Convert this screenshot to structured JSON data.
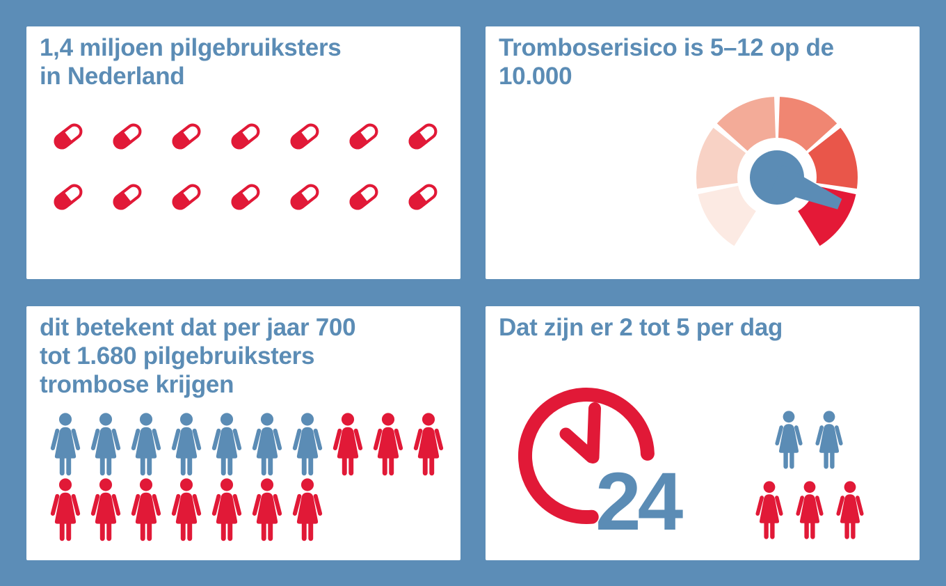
{
  "infographic": {
    "background_color": "#5c8db7",
    "card_color": "#ffffff",
    "blue": "#5b8cb5",
    "red": "#e11937"
  },
  "panel_pill_users": {
    "title": [
      "1,4 miljoen pilgebruiksters",
      "in Nederland"
    ],
    "pill_rows": [
      7,
      7
    ]
  },
  "panel_risk": {
    "title": [
      "Tromboserisico is 5–12 op de",
      "10.000"
    ],
    "gauge_segment_colors": [
      "#fceae3",
      "#f8d2c5",
      "#f3ab98",
      "#f08672",
      "#e9564a",
      "#e41937"
    ],
    "gauge_needle_color": "#5b8cb5"
  },
  "panel_per_year": {
    "title": [
      "dit betekent dat per jaar 700",
      "tot 1.680 pilgebruiksters",
      "trombose krijgen"
    ],
    "figure_rows": [
      [
        "blue",
        "blue",
        "blue",
        "blue",
        "blue",
        "blue",
        "blue",
        "red",
        "red",
        "red"
      ],
      [
        "red",
        "red",
        "red",
        "red",
        "red",
        "red",
        "red"
      ]
    ]
  },
  "panel_per_day": {
    "title": [
      "Dat zijn er 2 tot 5 per dag"
    ],
    "clock_label": "24",
    "figure_rows": [
      [
        "blue",
        "blue"
      ],
      [
        "red",
        "red",
        "red"
      ]
    ]
  },
  "chart_data": [
    {
      "type": "pictograph",
      "title": "1,4 miljoen pilgebruiksters in Nederland",
      "icon": "pill",
      "rows": [
        7,
        7
      ],
      "total_icons": 14
    },
    {
      "type": "gauge",
      "title": "Tromboserisico is 5–12 op de 10.000",
      "segments": 6,
      "segment_colors_low_to_high": [
        "#fceae3",
        "#f8d2c5",
        "#f3ab98",
        "#f08672",
        "#e9564a",
        "#e41937"
      ],
      "needle_points_to_segment": 6,
      "value_label": "5–12 op de 10.000"
    },
    {
      "type": "pictograph",
      "title": "dit betekent dat per jaar 700 tot 1.680 pilgebruiksters trombose krijgen",
      "icon": "woman",
      "rows": [
        {
          "blue": 7,
          "red": 3
        },
        {
          "blue": 0,
          "red": 7
        }
      ],
      "total_blue": 7,
      "total_red": 10
    },
    {
      "type": "pictograph",
      "title": "Dat zijn er 2 tot 5 per dag",
      "icons": [
        {
          "icon": "clock-24",
          "count": 1,
          "label": "24"
        },
        {
          "icon": "woman-blue",
          "count": 2
        },
        {
          "icon": "woman-red",
          "count": 3
        }
      ]
    }
  ]
}
